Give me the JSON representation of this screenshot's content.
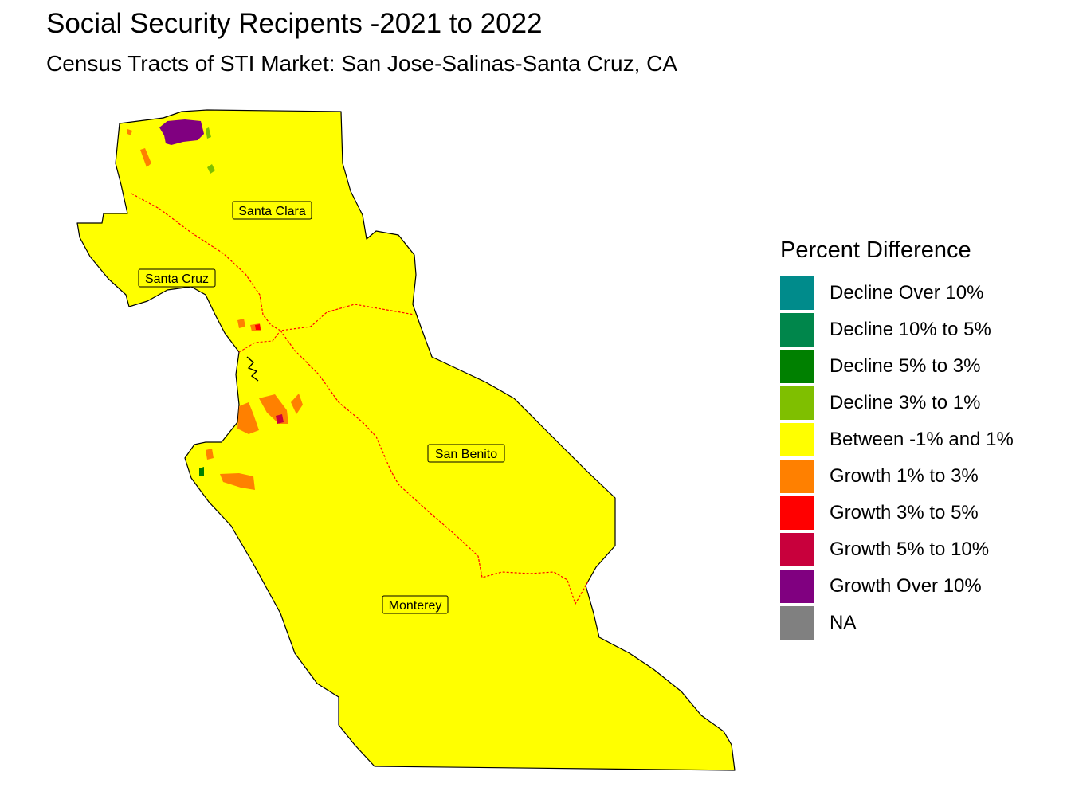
{
  "title": "Social Security Recipents -2021 to 2022",
  "subtitle": "Census Tracts of STI Market: San Jose-Salinas-Santa Cruz, CA",
  "counties": [
    {
      "name": "Santa Clara"
    },
    {
      "name": "Santa Cruz"
    },
    {
      "name": "San Benito"
    },
    {
      "name": "Monterey"
    }
  ],
  "legend": {
    "title": "Percent Difference",
    "items": [
      {
        "label": "Decline Over 10%",
        "color": "#008b8b"
      },
      {
        "label": "Decline 10% to 5%",
        "color": "#00864b"
      },
      {
        "label": "Decline 5% to 3%",
        "color": "#008000"
      },
      {
        "label": "Decline 3% to 1%",
        "color": "#7fbf00"
      },
      {
        "label": "Between -1% and 1%",
        "color": "#ffff00"
      },
      {
        "label": "Growth 1% to 3%",
        "color": "#ff8000"
      },
      {
        "label": "Growth 3% to 5%",
        "color": "#ff0000"
      },
      {
        "label": "Growth 5% to 10%",
        "color": "#c8003c"
      },
      {
        "label": "Growth Over 10%",
        "color": "#800080"
      },
      {
        "label": "NA",
        "color": "#808080"
      }
    ]
  },
  "colors": {
    "base_fill": "#ffff00",
    "county_border": "#ff0000"
  }
}
